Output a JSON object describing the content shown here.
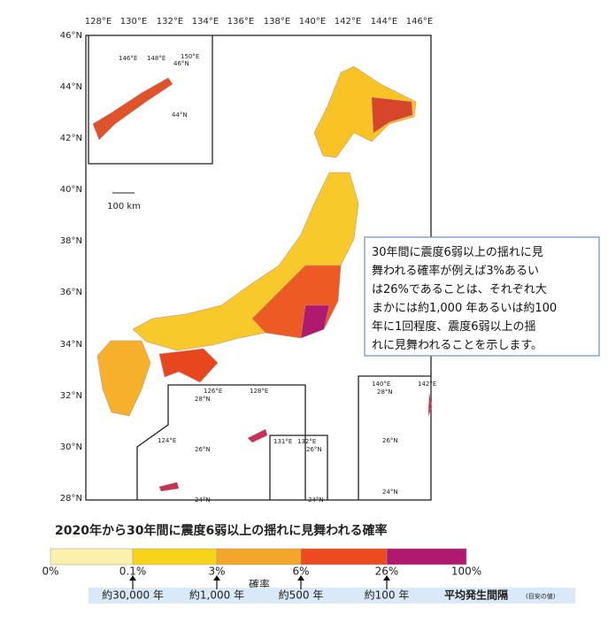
{
  "map": {
    "lon_labels": [
      "128°E",
      "130°E",
      "132°E",
      "134°E",
      "136°E",
      "138°E",
      "140°E",
      "142°E",
      "144°E",
      "146°E"
    ],
    "lat_labels": [
      "46°N",
      "44°N",
      "42°N",
      "40°N",
      "38°N",
      "36°N",
      "34°N",
      "32°N",
      "30°N",
      "28°N"
    ],
    "inset_north": [
      "146°E",
      "148°E",
      "150°E",
      "46°N",
      "44°N"
    ],
    "inset_southwest": [
      "126°E",
      "128°E",
      "28°N",
      "124°E",
      "26°N",
      "24°N"
    ],
    "inset_daito": [
      "131°E",
      "132°E",
      "26°N",
      "24°N"
    ],
    "inset_ogasawara": [
      "140°E",
      "142°E",
      "28°N",
      "26°N",
      "24°N"
    ],
    "scale": "100 km"
  },
  "note": [
    "30年間に震度6弱以上の揺れに見",
    "舞われる確率が例えば3%あるい",
    "は26%であることは、それぞれ大",
    "まかには約1,000 年あるいは約100",
    "年に1回程度、震度6弱以上の揺",
    "れに見舞われることを示します。"
  ],
  "legend": {
    "title": "2020年から30年間に震度6弱以上の揺れに見舞われる確率",
    "ticks": [
      "0%",
      "0.1%",
      "3%",
      "6%",
      "26%",
      "100%"
    ],
    "colors": [
      "#fbf1ad",
      "#f7d31a",
      "#f4a62a",
      "#ee4a1f",
      "#b01a6e"
    ],
    "axis_label": "確率",
    "intervals": [
      "約30,000 年",
      "約1,000 年",
      "約500 年",
      "約100 年"
    ],
    "interval_title": "平均発生間隔",
    "interval_note": "(目安の値)"
  }
}
